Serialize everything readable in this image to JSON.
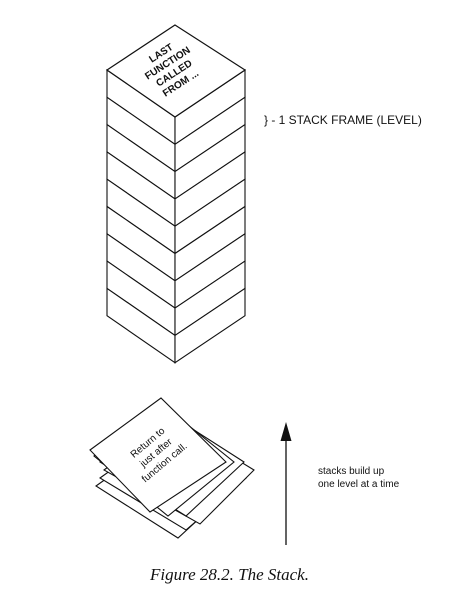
{
  "stack": {
    "top_label_lines": [
      "LAST",
      "FUNCTION",
      "CALLED",
      "FROM ..."
    ],
    "frame_count": 9,
    "frame_annotation": "} - 1 STACK FRAME (LEVEL)"
  },
  "papers": {
    "top_note_lines": [
      "Return to",
      "just after",
      "function call."
    ],
    "sheet_count": 5
  },
  "growth_note": {
    "line1": "stacks build up",
    "line2": "one level at a time"
  },
  "caption": "Figure 28.2. The Stack.",
  "colors": {
    "ink": "#111111",
    "paper": "#ffffff"
  }
}
